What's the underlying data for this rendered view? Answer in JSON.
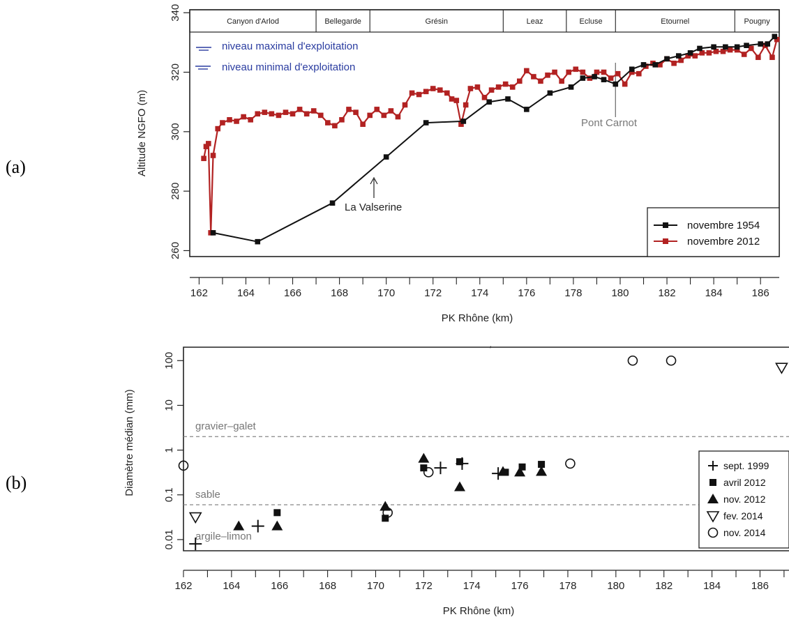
{
  "chart_data": [
    {
      "panel": "(a)",
      "type": "line",
      "xlabel": "PK Rhône (km)",
      "ylabel": "Altitude NGFO (m)",
      "xlim": [
        161.6,
        186.8
      ],
      "ylim": [
        258,
        341
      ],
      "xticks": [
        "162",
        "164",
        "166",
        "168",
        "170",
        "172",
        "174",
        "176",
        "178",
        "180",
        "182",
        "184",
        "186"
      ],
      "yticks": [
        "260",
        "280",
        "300",
        "320",
        "340"
      ],
      "sections": [
        {
          "name": "Canyon d'Arlod",
          "from": 161.6,
          "to": 167.0
        },
        {
          "name": "Bellegarde",
          "from": 167.0,
          "to": 169.3
        },
        {
          "name": "Grésin",
          "from": 169.3,
          "to": 175.0
        },
        {
          "name": "Leaz",
          "from": 175.0,
          "to": 177.7
        },
        {
          "name": "Ecluse",
          "from": 177.7,
          "to": 179.8
        },
        {
          "name": "Etournel",
          "from": 179.8,
          "to": 184.9
        },
        {
          "name": "Pougny",
          "from": 184.9,
          "to": 186.8
        }
      ],
      "notes": [
        "niveau maximal d'exploitation",
        "niveau minimal d'exploitation"
      ],
      "annotations": [
        {
          "text": "La Valserine",
          "x": 169.7,
          "y": 286
        },
        {
          "text": "Pont Carnot",
          "x": 179.8,
          "y": 318
        }
      ],
      "legend_position": "bottom-right",
      "series": [
        {
          "name": "novembre 1954",
          "color": "#111111",
          "x": [
            162.6,
            164.5,
            167.7,
            170.0,
            171.7,
            173.3,
            174.4,
            175.2,
            176.0,
            177.0,
            177.9,
            178.4,
            178.9,
            179.3,
            179.8,
            180.5,
            181.0,
            181.5,
            182.0,
            182.5,
            183.0,
            183.4,
            184.0,
            184.5,
            185.0,
            185.4,
            186.0,
            186.3,
            186.6
          ],
          "y": [
            266,
            263,
            276,
            291.5,
            303,
            303.5,
            310,
            311,
            307.5,
            313,
            315,
            318,
            318.5,
            317.5,
            316,
            321,
            322.5,
            322.5,
            324.5,
            325.5,
            326.5,
            328,
            328.5,
            328.5,
            328.5,
            329,
            329.5,
            329.5,
            332
          ]
        },
        {
          "name": "novembre 2012",
          "color": "#b22222",
          "x": [
            162.2,
            162.3,
            162.4,
            162.5,
            162.6,
            162.8,
            163.0,
            163.3,
            163.6,
            163.9,
            164.2,
            164.5,
            164.8,
            165.1,
            165.4,
            165.7,
            166.0,
            166.3,
            166.6,
            166.9,
            167.2,
            167.5,
            167.8,
            168.1,
            168.4,
            168.7,
            169.0,
            169.3,
            169.6,
            169.9,
            170.2,
            170.5,
            170.8,
            171.1,
            171.4,
            171.7,
            172.0,
            172.3,
            172.6,
            172.8,
            173.0,
            173.2,
            173.4,
            173.6,
            173.9,
            174.2,
            174.5,
            174.8,
            175.1,
            175.4,
            175.7,
            176.0,
            176.3,
            176.6,
            176.9,
            177.2,
            177.5,
            177.8,
            178.1,
            178.4,
            178.7,
            179.0,
            179.3,
            179.6,
            179.9,
            180.2,
            180.5,
            180.8,
            181.1,
            181.4,
            181.7,
            182.0,
            182.3,
            182.6,
            182.9,
            183.2,
            183.5,
            183.8,
            184.1,
            184.4,
            184.7,
            185.0,
            185.3,
            185.6,
            185.9,
            186.2,
            186.5,
            186.7
          ],
          "y": [
            291,
            295,
            296,
            266,
            292,
            301,
            303,
            304,
            303.5,
            305,
            304,
            306,
            306.5,
            306,
            305.5,
            306.5,
            306,
            307.5,
            306,
            307,
            305.5,
            303,
            302,
            304,
            307.5,
            306.5,
            302.5,
            305.5,
            307.5,
            305.5,
            307,
            305,
            309,
            313,
            312.5,
            313.5,
            314.5,
            314,
            313,
            311,
            310.5,
            302.5,
            309,
            314.5,
            315,
            311.5,
            314,
            315,
            316,
            315,
            317,
            320.5,
            318.5,
            317,
            319,
            320,
            317,
            320,
            321,
            320,
            318,
            320,
            320,
            318,
            319.5,
            316,
            320,
            319.5,
            322,
            323,
            322.5,
            324.5,
            323,
            324,
            325.5,
            325.5,
            326.5,
            326.5,
            327,
            327,
            327.5,
            327.5,
            326,
            328,
            325,
            329,
            325,
            331
          ]
        }
      ]
    },
    {
      "panel": "(b)",
      "type": "scatter",
      "xlabel": "PK Rhône (km)",
      "ylabel": "Diamètre médian (mm)",
      "xlim": [
        162.0,
        186.8
      ],
      "ylim_log10": [
        -2.25,
        2.3
      ],
      "log_scale_y": true,
      "xticks": [
        "162",
        "164",
        "166",
        "168",
        "170",
        "172",
        "174",
        "176",
        "178",
        "180",
        "182",
        "184",
        "186"
      ],
      "yticks": [
        "0.01",
        "0.1",
        "1",
        "10",
        "100"
      ],
      "reference_lines": [
        {
          "label": "gravier–galet",
          "y": 2
        },
        {
          "label": "sable",
          "y": 0.06
        }
      ],
      "class_labels": [
        {
          "label": "argile–limon"
        }
      ],
      "legend_position": "right",
      "series": [
        {
          "name": "sept. 1999",
          "marker": "plus",
          "x": [
            162.5,
            165.1,
            172.7,
            173.6,
            175.1
          ],
          "y": [
            0.008,
            0.02,
            0.4,
            0.5,
            0.3
          ]
        },
        {
          "name": "avril 2012",
          "marker": "square",
          "x": [
            165.9,
            170.4,
            172.0,
            173.5,
            175.4,
            176.1,
            176.9
          ],
          "y": [
            0.04,
            0.03,
            0.4,
            0.55,
            0.32,
            0.42,
            0.48
          ]
        },
        {
          "name": "nov. 2012",
          "marker": "triangle-up",
          "x": [
            164.3,
            165.9,
            170.4,
            172.0,
            173.5,
            175.3,
            176.0,
            176.9
          ],
          "y": [
            0.02,
            0.02,
            0.055,
            0.65,
            0.15,
            0.33,
            0.32,
            0.33
          ]
        },
        {
          "name": "fev. 2014",
          "marker": "triangle-down",
          "x": [
            162.5,
            186.9
          ],
          "y": [
            0.032,
            70
          ]
        },
        {
          "name": "nov. 2014",
          "marker": "circle",
          "x": [
            162.0,
            170.5,
            172.2,
            178.1,
            180.7,
            182.3
          ],
          "y": [
            0.45,
            0.04,
            0.32,
            0.5,
            100,
            100
          ]
        }
      ]
    }
  ],
  "labels": {
    "panel_a": "(a)",
    "panel_b": "(b)",
    "tick_mark_b_top": "′"
  },
  "colors": {
    "series_1954": "#111111",
    "series_2012": "#b22222",
    "blue_note": "#2a3ca0",
    "ref_line": "#888888"
  }
}
